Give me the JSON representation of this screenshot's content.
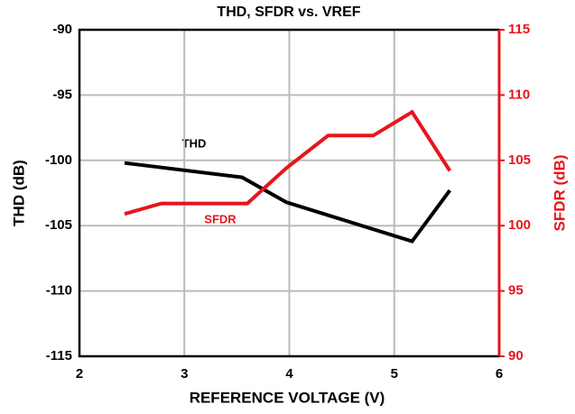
{
  "chart_data": {
    "type": "line",
    "title": "THD, SFDR vs. VREF",
    "x_label": "REFERENCE VOLTAGE (V)",
    "y_label": "THD (dB)",
    "y2_label": "SFDR (dB)",
    "xlim": [
      2,
      6
    ],
    "xticks": [
      2,
      3,
      4,
      5,
      6
    ],
    "ylim": [
      -115,
      -90
    ],
    "yticks": [
      -115,
      -110,
      -105,
      -100,
      -95,
      -90
    ],
    "y2lim": [
      90,
      115
    ],
    "y2ticks": [
      90,
      95,
      100,
      105,
      110,
      115
    ],
    "grid": true,
    "annotations": [
      "THD",
      "SFDR"
    ],
    "series": [
      {
        "name": "THD",
        "color": "#000000",
        "x": [
          2.43,
          3.55,
          3.97,
          5.17,
          5.53
        ],
        "values": [
          -100.2,
          -101.3,
          -103.2,
          -106.2,
          -102.3
        ]
      },
      {
        "name": "SFDR",
        "color": "#e8141c",
        "axis": "y2",
        "x": [
          2.43,
          2.78,
          3.6,
          3.97,
          4.37,
          4.8,
          5.17,
          5.53
        ],
        "values": [
          100.9,
          101.7,
          101.7,
          104.4,
          106.9,
          106.9,
          108.7,
          104.2
        ]
      }
    ]
  }
}
